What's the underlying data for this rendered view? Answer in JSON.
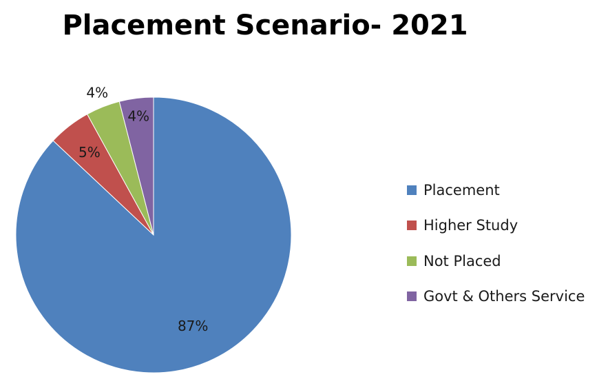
{
  "chart_data": {
    "type": "pie",
    "title": "Placement Scenario- 2021",
    "categories": [
      "Placement",
      "Higher Study",
      "Not Placed",
      "Govt & Others Service"
    ],
    "values": [
      87,
      5,
      4,
      4
    ],
    "labels": [
      "87%",
      "5%",
      "4%",
      "4%"
    ],
    "colors": [
      "#4F81BD",
      "#C0504D",
      "#9BBB59",
      "#8064A2"
    ],
    "legend_position": "right"
  }
}
